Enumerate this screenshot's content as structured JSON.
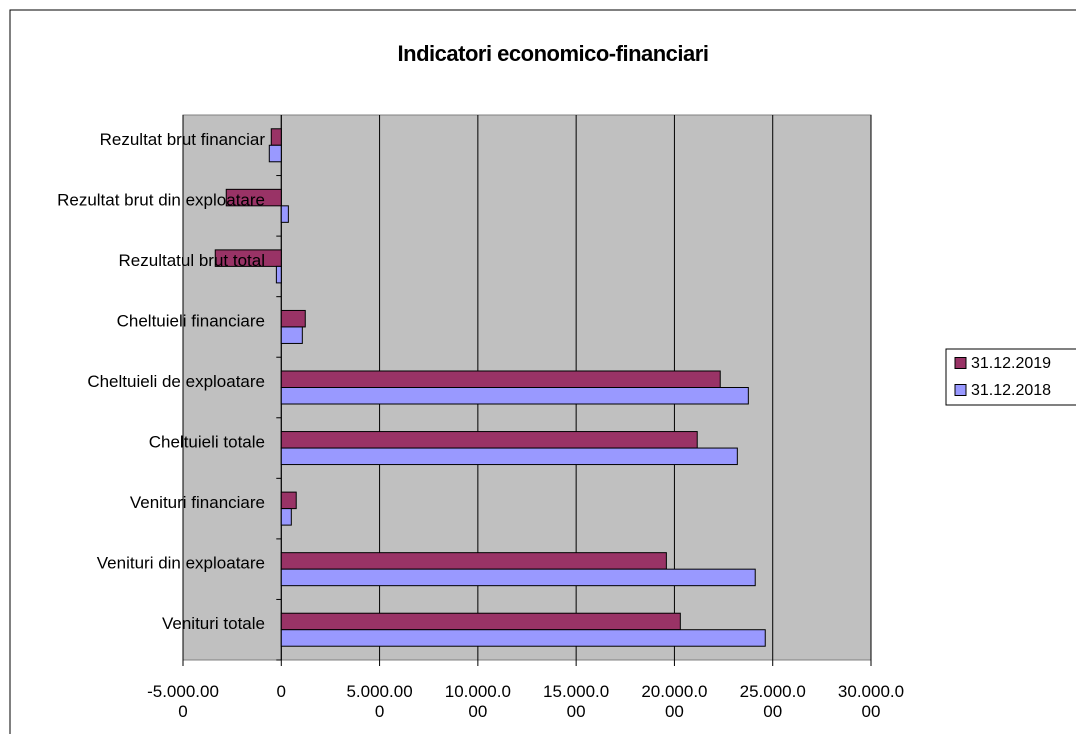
{
  "chart_data": {
    "type": "bar",
    "orientation": "horizontal",
    "title": "Indicatori economico-financiari",
    "categories": [
      "Venituri totale",
      "Venituri din exploatare",
      "Venituri  financiare",
      "Cheltuieli totale",
      "Cheltuieli de exploatare",
      "Cheltuieli  financiare",
      "Rezultatul brut  total",
      "Rezultat brut din exploatare",
      "Rezultat brut financiar"
    ],
    "series": [
      {
        "name": "31.12.2019",
        "color": "#993366",
        "values": [
          20300,
          19590,
          760,
          21160,
          22330,
          1220,
          -3360,
          -2800,
          -510
        ]
      },
      {
        "name": "31.12.2018",
        "color": "#9999ff",
        "values": [
          24620,
          24110,
          510,
          23200,
          23760,
          1070,
          -250,
          360,
          -610
        ]
      }
    ],
    "xlim": [
      -5000,
      30000
    ],
    "xticks": [
      {
        "value": -5000,
        "label": "-5.000.000"
      },
      0,
      {
        "value": 5000,
        "label": "5.000.000"
      },
      {
        "value": 10000,
        "label": "10.000.000"
      },
      {
        "value": 15000,
        "label": "15.000.000"
      },
      {
        "value": 20000,
        "label": "20.000.000"
      },
      {
        "value": 25000,
        "label": "25.000.000"
      },
      {
        "value": 30000,
        "label": "30.000.000"
      }
    ],
    "grid": true,
    "legend": "right",
    "plot_background": "#c0c0c0"
  }
}
